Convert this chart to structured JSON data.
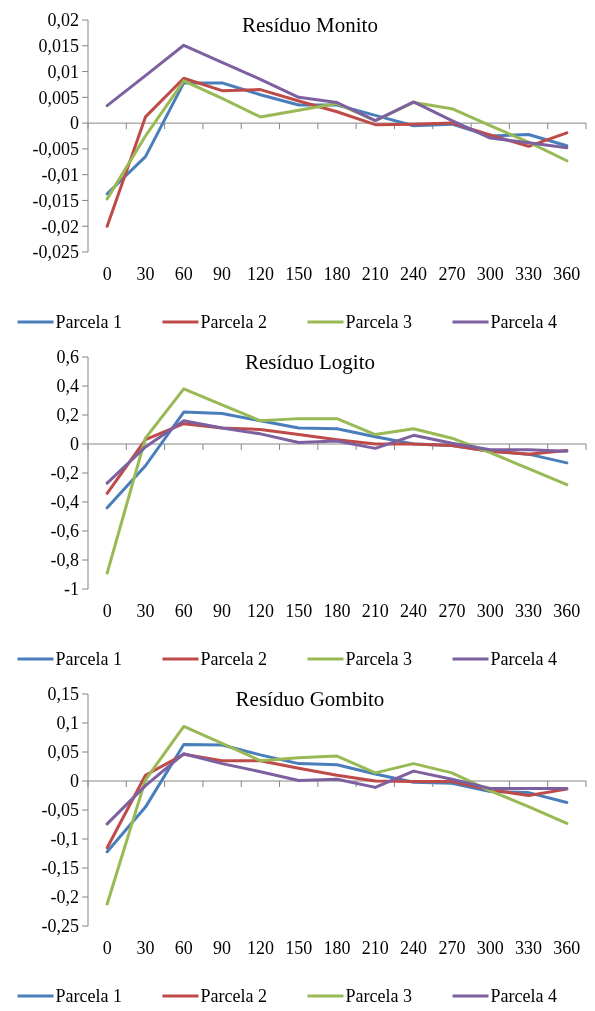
{
  "chart_data": [
    {
      "type": "line",
      "title": "Resíduo Monito",
      "categories": [
        "0",
        "30",
        "60",
        "90",
        "120",
        "150",
        "180",
        "210",
        "240",
        "270",
        "300",
        "330",
        "360"
      ],
      "ylim": [
        -0.025,
        0.02
      ],
      "yticks": [
        {
          "value": -0.025,
          "label": "-0,025"
        },
        {
          "value": -0.02,
          "label": "-0,02"
        },
        {
          "value": -0.015,
          "label": "-0,015"
        },
        {
          "value": -0.01,
          "label": "-0,01"
        },
        {
          "value": -0.005,
          "label": "-0,005"
        },
        {
          "value": 0,
          "label": "0"
        },
        {
          "value": 0.005,
          "label": "0,005"
        },
        {
          "value": 0.01,
          "label": "0,01"
        },
        {
          "value": 0.015,
          "label": "0,015"
        },
        {
          "value": 0.02,
          "label": "0,02"
        }
      ],
      "legend": "bottom",
      "marker": "none",
      "line_style": "solid",
      "series": [
        {
          "name": "Parcela 1",
          "color": "#4a7ebb",
          "values": [
            -0.0137,
            -0.0065,
            0.0078,
            0.0078,
            0.0055,
            0.0035,
            0.0035,
            0.0015,
            -0.0005,
            -0.0002,
            -0.0025,
            -0.0022,
            -0.0044
          ]
        },
        {
          "name": "Parcela 2",
          "color": "#be4b48",
          "values": [
            -0.02,
            0.0012,
            0.0087,
            0.0063,
            0.0065,
            0.0043,
            0.0022,
            -0.0003,
            -0.0002,
            0,
            -0.0023,
            -0.0045,
            -0.0019
          ]
        },
        {
          "name": "Parcela 3",
          "color": "#98b954",
          "values": [
            -0.0147,
            -0.0025,
            0.0082,
            0.0048,
            0.0012,
            0.0025,
            0.0038,
            0.0005,
            0.004,
            0.0028,
            -0.0005,
            -0.0037,
            -0.0073
          ]
        },
        {
          "name": "Parcela 4",
          "color": "#7d60a0",
          "values": [
            0.0034,
            0.0092,
            0.0151,
            0.0118,
            0.0085,
            0.005,
            0.004,
            0.0005,
            0.0041,
            0.0005,
            -0.0029,
            -0.0038,
            -0.0048
          ]
        }
      ]
    },
    {
      "type": "line",
      "title": "Resíduo Logito",
      "categories": [
        "0",
        "30",
        "60",
        "90",
        "120",
        "150",
        "180",
        "210",
        "240",
        "270",
        "300",
        "330",
        "360"
      ],
      "ylim": [
        -1,
        0.6
      ],
      "yticks": [
        -1,
        {
          "value": -0.8,
          "label": "-0,8"
        },
        {
          "value": -0.6,
          "label": "-0,6"
        },
        {
          "value": -0.4,
          "label": "-0,4"
        },
        {
          "value": -0.2,
          "label": "-0,2"
        },
        {
          "value": 0,
          "label": "0"
        },
        {
          "value": 0.2,
          "label": "0,2"
        },
        {
          "value": 0.4,
          "label": "0,4"
        },
        {
          "value": 0.6,
          "label": "0,6"
        }
      ],
      "legend": "bottom",
      "marker": "none",
      "line_style": "solid",
      "series": [
        {
          "name": "Parcela 1",
          "color": "#4a7ebb",
          "values": [
            -0.44,
            -0.15,
            0.22,
            0.21,
            0.16,
            0.11,
            0.105,
            0.05,
            0,
            -0.01,
            -0.05,
            -0.07,
            -0.13
          ]
        },
        {
          "name": "Parcela 2",
          "color": "#be4b48",
          "values": [
            -0.34,
            0.03,
            0.14,
            0.11,
            0.1,
            0.065,
            0.03,
            0,
            0,
            -0.01,
            -0.05,
            -0.07,
            -0.045
          ]
        },
        {
          "name": "Parcela 3",
          "color": "#98b954",
          "values": [
            -0.89,
            0.04,
            0.38,
            0.27,
            0.16,
            0.175,
            0.175,
            0.065,
            0.105,
            0.04,
            -0.06,
            -0.17,
            -0.28
          ]
        },
        {
          "name": "Parcela 4",
          "color": "#7d60a0",
          "values": [
            -0.27,
            -0.02,
            0.16,
            0.11,
            0.07,
            0.01,
            0.02,
            -0.03,
            0.06,
            0.005,
            -0.04,
            -0.04,
            -0.05
          ]
        }
      ]
    },
    {
      "type": "line",
      "title": "Resíduo Gombito",
      "categories": [
        "0",
        "30",
        "60",
        "90",
        "120",
        "150",
        "180",
        "210",
        "240",
        "270",
        "300",
        "330",
        "360"
      ],
      "ylim": [
        -0.25,
        0.15
      ],
      "yticks": [
        {
          "value": -0.25,
          "label": "-0,25"
        },
        {
          "value": -0.2,
          "label": "-0,2"
        },
        {
          "value": -0.15,
          "label": "-0,15"
        },
        {
          "value": -0.1,
          "label": "-0,1"
        },
        {
          "value": -0.05,
          "label": "-0,05"
        },
        {
          "value": 0,
          "label": "0"
        },
        {
          "value": 0.05,
          "label": "0,05"
        },
        {
          "value": 0.1,
          "label": "0,1"
        },
        {
          "value": 0.15,
          "label": "0,15"
        }
      ],
      "legend": "bottom",
      "marker": "none",
      "line_style": "solid",
      "series": [
        {
          "name": "Parcela 1",
          "color": "#4a7ebb",
          "values": [
            -0.122,
            -0.045,
            0.063,
            0.062,
            0.045,
            0.03,
            0.028,
            0.012,
            -0.002,
            -0.004,
            -0.018,
            -0.02,
            -0.037
          ]
        },
        {
          "name": "Parcela 2",
          "color": "#be4b48",
          "values": [
            -0.115,
            0.01,
            0.046,
            0.035,
            0.035,
            0.022,
            0.01,
            0,
            -0.001,
            -0.001,
            -0.015,
            -0.025,
            -0.014
          ]
        },
        {
          "name": "Parcela 3",
          "color": "#98b954",
          "values": [
            -0.212,
            0.002,
            0.094,
            0.065,
            0.035,
            0.04,
            0.043,
            0.014,
            0.03,
            0.014,
            -0.017,
            -0.044,
            -0.073
          ]
        },
        {
          "name": "Parcela 4",
          "color": "#7d60a0",
          "values": [
            -0.074,
            -0.008,
            0.047,
            0.03,
            0.016,
            0.001,
            0.003,
            -0.011,
            0.017,
            0.003,
            -0.013,
            -0.013,
            -0.013
          ]
        }
      ]
    }
  ]
}
